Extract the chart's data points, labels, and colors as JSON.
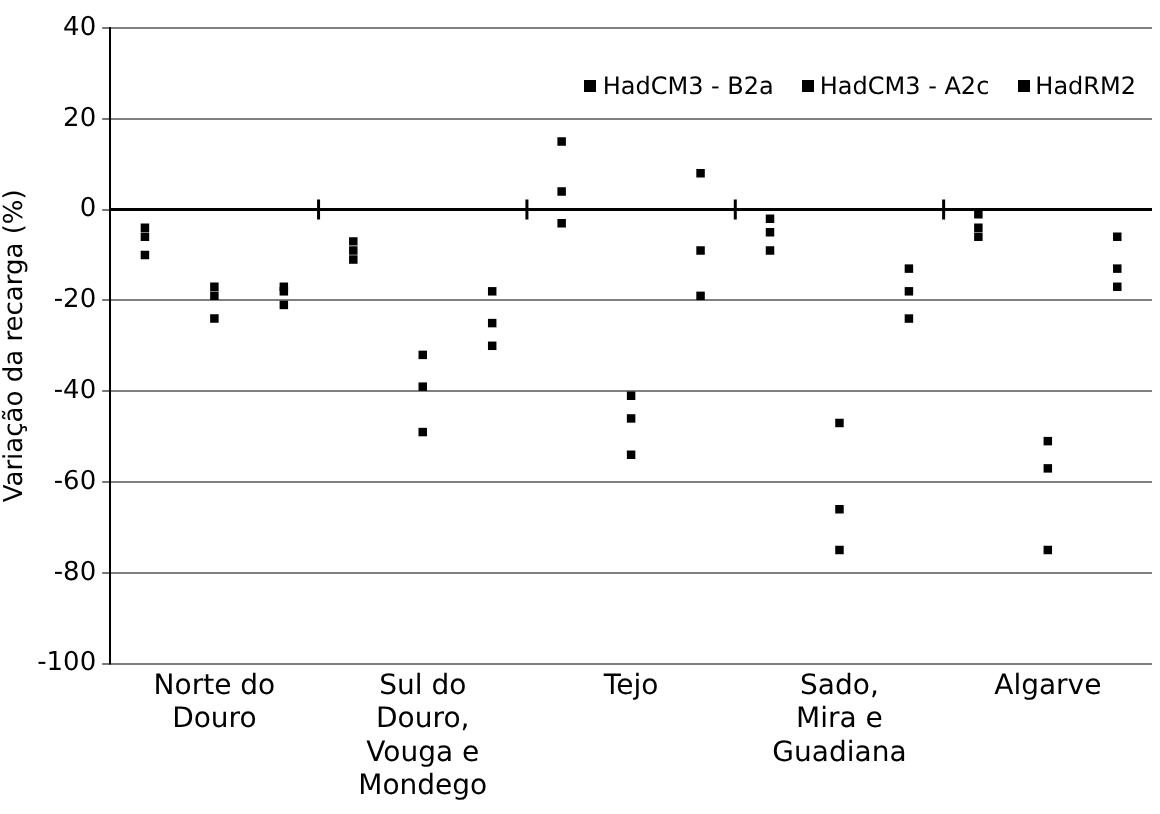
{
  "chart_data": {
    "type": "scatter",
    "ylabel": "Variação da recarga (%)",
    "categories": [
      null,
      "Norte do Douro",
      null,
      null,
      "Sul do Douro, Vouga e Mondego",
      null,
      null,
      "Tejo",
      null,
      null,
      "Sado, Mira e Guadiana",
      null,
      null,
      "Algarve",
      null
    ],
    "series": [
      {
        "name": "HadCM3 - B2a",
        "color": "#000000",
        "values": [
          -4,
          null,
          null,
          -7,
          null,
          null,
          15,
          null,
          null,
          -2,
          null,
          null,
          -1,
          null,
          null
        ]
      },
      {
        "color": "#000000",
        "values": [
          -6,
          null,
          null,
          -9,
          null,
          null,
          4,
          null,
          null,
          -5,
          null,
          null,
          -4,
          null,
          null
        ]
      },
      {
        "color": "#000000",
        "values": [
          -10,
          null,
          null,
          -11,
          null,
          null,
          -3,
          null,
          null,
          -9,
          null,
          null,
          -6,
          null,
          null
        ]
      },
      {
        "name": "HadCM3 - A2c",
        "color": "#000000",
        "values": [
          null,
          -17,
          null,
          null,
          -32,
          null,
          null,
          -41,
          null,
          null,
          -47,
          null,
          null,
          -51,
          null
        ]
      },
      {
        "color": "#000000",
        "values": [
          null,
          -19,
          null,
          null,
          -39,
          null,
          null,
          -46,
          null,
          null,
          -66,
          null,
          null,
          -57,
          null
        ]
      },
      {
        "color": "#000000",
        "values": [
          null,
          -24,
          null,
          null,
          -49,
          null,
          null,
          -54,
          null,
          null,
          -75,
          null,
          null,
          -75,
          null
        ]
      },
      {
        "name": "HadRM2",
        "color": "#000000",
        "values": [
          null,
          null,
          -17,
          null,
          null,
          -18,
          null,
          null,
          8,
          null,
          null,
          -13,
          null,
          null,
          -6
        ]
      },
      {
        "color": "#000000",
        "values": [
          null,
          null,
          -18,
          null,
          null,
          -25,
          null,
          null,
          -9,
          null,
          null,
          -18,
          null,
          null,
          -13
        ]
      },
      {
        "color": "#000000",
        "values": [
          null,
          null,
          -21,
          null,
          null,
          -30,
          null,
          null,
          -19,
          null,
          null,
          -24,
          null,
          null,
          -17
        ]
      }
    ],
    "ylim": [
      -100,
      40
    ],
    "yticks": [
      -100,
      -80,
      -60,
      -40,
      -20,
      0,
      20,
      40
    ],
    "grid": "y",
    "legend": "top right"
  }
}
